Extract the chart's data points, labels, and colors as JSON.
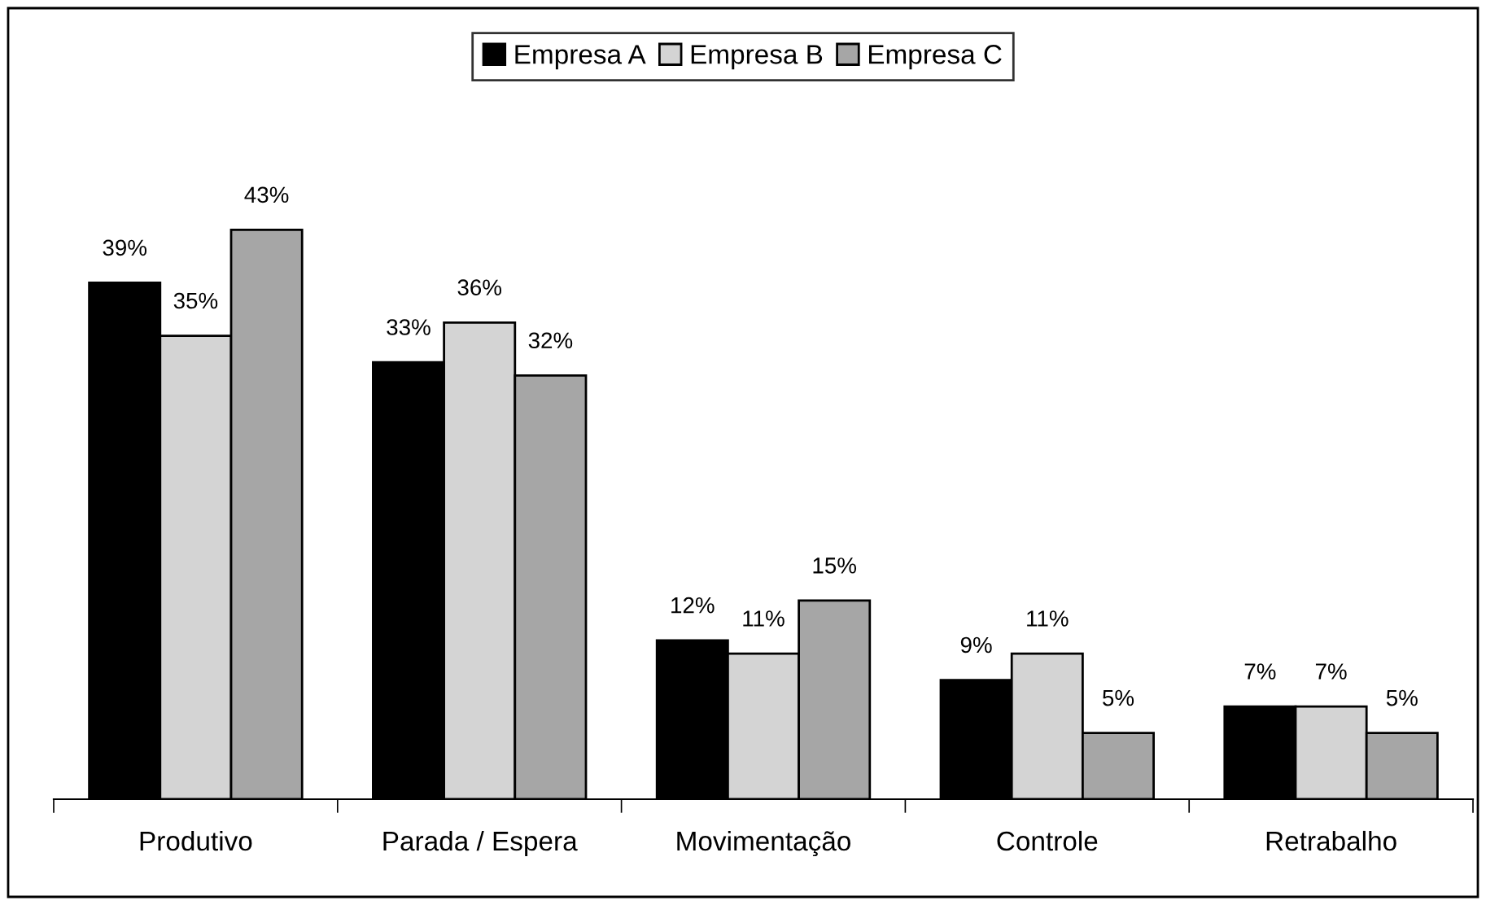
{
  "chart_data": {
    "type": "bar",
    "categories": [
      "Produtivo",
      "Parada / Espera",
      "Movimentação",
      "Controle",
      "Retrabalho"
    ],
    "series": [
      {
        "name": "Empresa A",
        "color": "#000000",
        "values": [
          39,
          33,
          12,
          9,
          7
        ],
        "value_labels": [
          "39%",
          "33%",
          "12%",
          "9%",
          "7%"
        ]
      },
      {
        "name": "Empresa B",
        "color": "#d4d4d4",
        "values": [
          35,
          36,
          11,
          11,
          7
        ],
        "value_labels": [
          "35%",
          "36%",
          "11%",
          "11%",
          "7%"
        ]
      },
      {
        "name": "Empresa C",
        "color": "#a6a6a6",
        "values": [
          43,
          32,
          15,
          5,
          5
        ],
        "value_labels": [
          "43%",
          "32%",
          "15%",
          "5%",
          "5%"
        ]
      }
    ],
    "legend": "top",
    "grid": false
  }
}
